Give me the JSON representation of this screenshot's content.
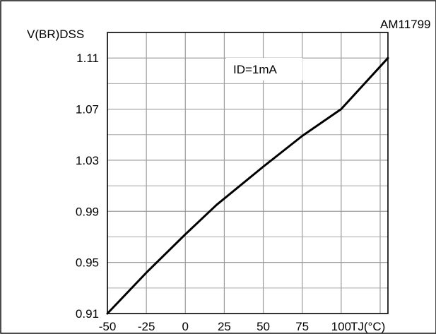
{
  "chart_data": {
    "type": "line",
    "id_label": "AM11799",
    "ylabel": "V(BR)DSS",
    "xlabel": "TJ(°C)",
    "annotation": "ID=1mA",
    "xlim": [
      -50,
      130
    ],
    "ylim": [
      0.91,
      1.13
    ],
    "x_ticks": [
      -50,
      -25,
      0,
      25,
      50,
      75,
      100
    ],
    "x_tick_labels": [
      "-50",
      "-25",
      "0",
      "25",
      "50",
      "75",
      "100"
    ],
    "y_ticks": [
      0.91,
      0.95,
      0.99,
      1.03,
      1.07,
      1.11
    ],
    "y_tick_labels": [
      "0.91",
      "0.95",
      "0.99",
      "1.03",
      "1.07",
      "1.11"
    ],
    "grid": true,
    "series": [
      {
        "x": [
          -50,
          -25,
          0,
          20,
          50,
          75,
          100,
          130
        ],
        "y": [
          0.91,
          0.942,
          0.972,
          0.995,
          1.025,
          1.049,
          1.07,
          1.11
        ]
      }
    ]
  }
}
